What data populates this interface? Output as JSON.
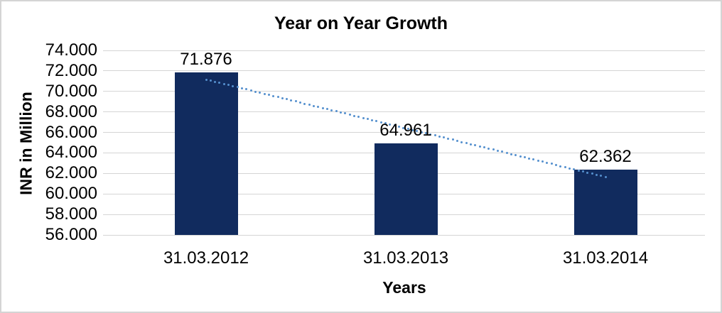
{
  "chart_data": {
    "type": "bar",
    "title": "Year on Year Growth",
    "xlabel": "Years",
    "ylabel": "INR in Million",
    "categories": [
      "31.03.2012",
      "31.03.2013",
      "31.03.2014"
    ],
    "values": [
      71.876,
      64.961,
      62.362
    ],
    "data_labels": [
      "71.876",
      "64.961",
      "62.362"
    ],
    "y_ticks": [
      "74.000",
      "72.000",
      "70.000",
      "68.000",
      "66.000",
      "64.000",
      "62.000",
      "60.000",
      "58.000",
      "56.000"
    ],
    "ylim": [
      56,
      74
    ],
    "y_step": 2,
    "grid": true,
    "legend": false,
    "trendline": {
      "type": "linear",
      "style": "dotted"
    },
    "colors": {
      "bar": "#112B5E",
      "trendline_dot": "#5590CE",
      "gridline": "#D5D5D5",
      "frame_border": "#D4D4D4",
      "text": "#000000",
      "background": "#FFFFFF"
    }
  }
}
